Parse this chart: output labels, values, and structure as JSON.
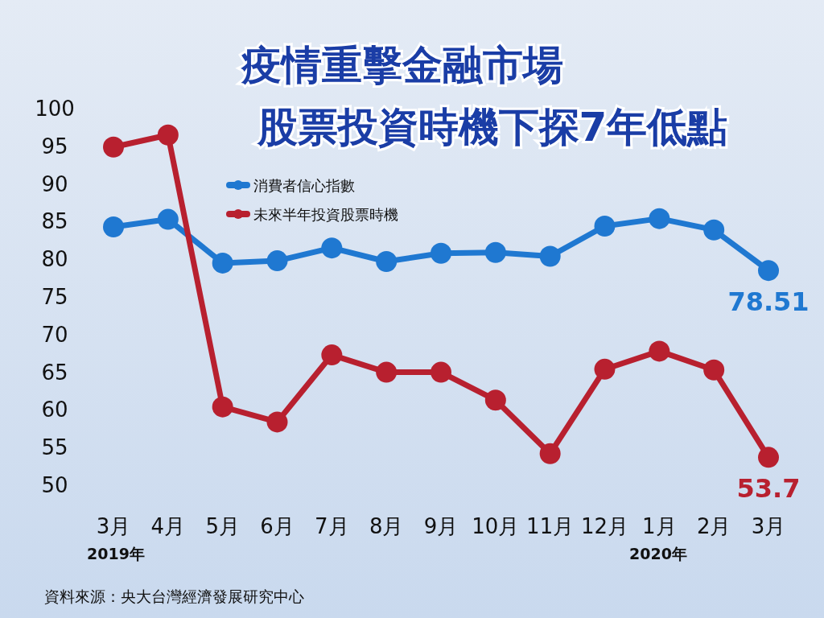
{
  "chart_data": {
    "type": "line",
    "title": "疫情重擊金融市場",
    "subtitle": "股票投資時機下探7年低點",
    "categories": [
      "3月",
      "4月",
      "5月",
      "6月",
      "7月",
      "8月",
      "9月",
      "10月",
      "11月",
      "12月",
      "1月",
      "2月",
      "3月"
    ],
    "series": [
      {
        "name": "消費者信心指數",
        "color": "#1f78d1",
        "values": [
          84.3,
          85.3,
          79.5,
          79.8,
          81.5,
          79.7,
          80.8,
          80.9,
          80.4,
          84.4,
          85.4,
          83.9,
          78.51
        ],
        "value_labels": [
          null,
          null,
          null,
          null,
          null,
          null,
          null,
          null,
          null,
          null,
          null,
          null,
          "78.51"
        ]
      },
      {
        "name": "未來半年投資股票時機",
        "color": "#b8202f",
        "values": [
          94.9,
          96.5,
          60.4,
          58.4,
          67.3,
          65.0,
          65.0,
          61.3,
          54.2,
          65.4,
          67.8,
          65.3,
          53.7
        ],
        "value_labels": [
          null,
          null,
          null,
          null,
          null,
          null,
          null,
          null,
          null,
          null,
          null,
          null,
          "53.7"
        ]
      }
    ],
    "ylim": [
      50,
      100
    ],
    "yticks": [
      50,
      55,
      60,
      65,
      70,
      75,
      80,
      85,
      90,
      95,
      100
    ],
    "marker": "circle",
    "legend": "top left",
    "grid": false,
    "annotations": [
      "2019年",
      "2020年",
      "資料來源：央大台灣經濟發展研究中心"
    ]
  }
}
